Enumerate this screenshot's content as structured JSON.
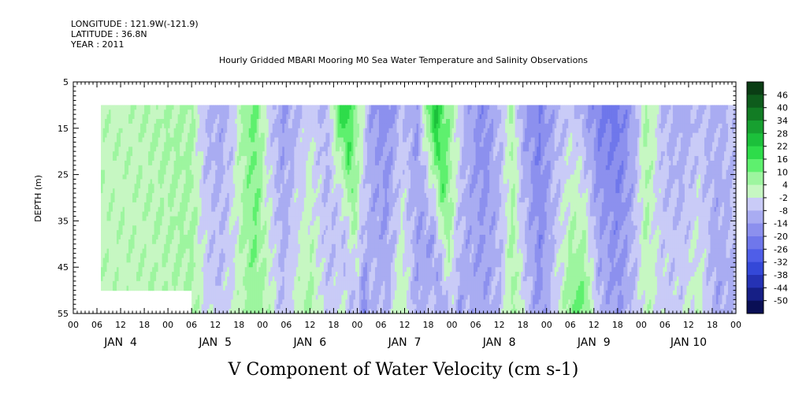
{
  "header": {
    "longitude": "LONGITUDE : 121.9W(-121.9)",
    "latitude": "LATITUDE : 36.8N",
    "year": "YEAR : 2011"
  },
  "chart_data": {
    "type": "heatmap",
    "title": "Hourly Gridded MBARI Mooring M0 Sea Water Temperature and Salinity Observations",
    "xlabel": "V Component of Water Velocity (cm s-1)",
    "ylabel": "DEPTH (m)",
    "ylim": [
      5,
      55
    ],
    "y_inverted": true,
    "y_ticks": [
      5,
      15,
      25,
      35,
      45,
      55
    ],
    "x_range_hours": [
      0,
      168
    ],
    "x_hour_ticks": [
      "00",
      "06",
      "12",
      "18",
      "00",
      "06",
      "12",
      "18",
      "00",
      "06",
      "12",
      "18",
      "00",
      "06",
      "12",
      "18",
      "00",
      "06",
      "12",
      "18",
      "00",
      "06",
      "12",
      "18",
      "00",
      "06",
      "12",
      "18",
      "00"
    ],
    "x_day_labels": [
      "JAN  4",
      "JAN  5",
      "JAN  6",
      "JAN  7",
      "JAN  8",
      "JAN  9",
      "JAN 10"
    ],
    "colorbar": {
      "labels": [
        "46",
        "40",
        "34",
        "28",
        "22",
        "16",
        "10",
        "4",
        "-2",
        "-8",
        "-14",
        "-20",
        "-26",
        "-32",
        "-38",
        "-44",
        "-50"
      ],
      "colors": [
        "#0a3d14",
        "#0e5c1c",
        "#127c24",
        "#17a030",
        "#1cc03b",
        "#2edc4a",
        "#5ef06e",
        "#9df59f",
        "#c6f7c2",
        "#c9cbf7",
        "#a9acf2",
        "#8c90ee",
        "#6f77eb",
        "#4f5ee8",
        "#3448d8",
        "#2532b4",
        "#161f86",
        "#0a0f55"
      ]
    },
    "data_extent": {
      "x_start_hour": 7,
      "x_end_hour": 168,
      "depth_top": 10,
      "depth_bottom": 55,
      "first_day_bottom_depth": 50
    },
    "columns": [
      {
        "hour": 7,
        "top": 2,
        "bottom": 2,
        "shift": 0
      },
      {
        "hour": 12,
        "top": 2,
        "bottom": 2,
        "shift": 0
      },
      {
        "hour": 18,
        "top": 3,
        "bottom": 2,
        "shift": 0
      },
      {
        "hour": 22,
        "top": 4,
        "bottom": 3,
        "shift": 0
      },
      {
        "hour": 27,
        "top": 5,
        "bottom": 4,
        "shift": 0
      },
      {
        "hour": 30,
        "top": 5,
        "bottom": 5,
        "shift": 0
      },
      {
        "hour": 33,
        "top": -8,
        "bottom": -2,
        "shift": 0
      },
      {
        "hour": 37,
        "top": -12,
        "bottom": -6,
        "shift": 0
      },
      {
        "hour": 40,
        "top": -6,
        "bottom": -2,
        "shift": 0
      },
      {
        "hour": 43,
        "top": 6,
        "bottom": 4,
        "shift": 0
      },
      {
        "hour": 46,
        "top": 12,
        "bottom": 8,
        "shift": 0
      },
      {
        "hour": 49,
        "top": -4,
        "bottom": 3,
        "shift": 0
      },
      {
        "hour": 53,
        "top": -14,
        "bottom": -8,
        "shift": 0
      },
      {
        "hour": 57,
        "top": -8,
        "bottom": 2,
        "shift": 0
      },
      {
        "hour": 60,
        "top": -4,
        "bottom": 6,
        "shift": 0
      },
      {
        "hour": 64,
        "top": -10,
        "bottom": -6,
        "shift": 0
      },
      {
        "hour": 68,
        "top": 22,
        "bottom": -8,
        "shift": 6
      },
      {
        "hour": 71,
        "top": 10,
        "bottom": -20,
        "shift": 6
      },
      {
        "hour": 75,
        "top": -12,
        "bottom": -8,
        "shift": 0
      },
      {
        "hour": 79,
        "top": -18,
        "bottom": -10,
        "shift": 0
      },
      {
        "hour": 83,
        "top": -8,
        "bottom": 4,
        "shift": 0
      },
      {
        "hour": 87,
        "top": -14,
        "bottom": -12,
        "shift": 0
      },
      {
        "hour": 91,
        "top": 24,
        "bottom": -4,
        "shift": 6
      },
      {
        "hour": 95,
        "top": 8,
        "bottom": -14,
        "shift": 6
      },
      {
        "hour": 99,
        "top": -10,
        "bottom": -10,
        "shift": 0
      },
      {
        "hour": 104,
        "top": -18,
        "bottom": -12,
        "shift": 0
      },
      {
        "hour": 108,
        "top": -8,
        "bottom": -8,
        "shift": 0
      },
      {
        "hour": 111,
        "top": 4,
        "bottom": 6,
        "shift": 0
      },
      {
        "hour": 114,
        "top": -14,
        "bottom": -2,
        "shift": 0
      },
      {
        "hour": 118,
        "top": -20,
        "bottom": -16,
        "shift": 0
      },
      {
        "hour": 122,
        "top": -10,
        "bottom": -4,
        "shift": 0
      },
      {
        "hour": 126,
        "top": -6,
        "bottom": 10,
        "shift": 0
      },
      {
        "hour": 129,
        "top": -12,
        "bottom": 14,
        "shift": 0
      },
      {
        "hour": 133,
        "top": -20,
        "bottom": -8,
        "shift": 0
      },
      {
        "hour": 138,
        "top": -22,
        "bottom": -14,
        "shift": 0
      },
      {
        "hour": 142,
        "top": -12,
        "bottom": -6,
        "shift": 0
      },
      {
        "hour": 145,
        "top": 6,
        "bottom": 2,
        "shift": 0
      },
      {
        "hour": 149,
        "top": -8,
        "bottom": -4,
        "shift": 0
      },
      {
        "hour": 154,
        "top": -12,
        "bottom": -4,
        "shift": 0
      },
      {
        "hour": 158,
        "top": -8,
        "bottom": 2,
        "shift": 0
      },
      {
        "hour": 163,
        "top": -10,
        "bottom": -12,
        "shift": 0
      },
      {
        "hour": 168,
        "top": -6,
        "bottom": -8,
        "shift": 0
      }
    ]
  }
}
